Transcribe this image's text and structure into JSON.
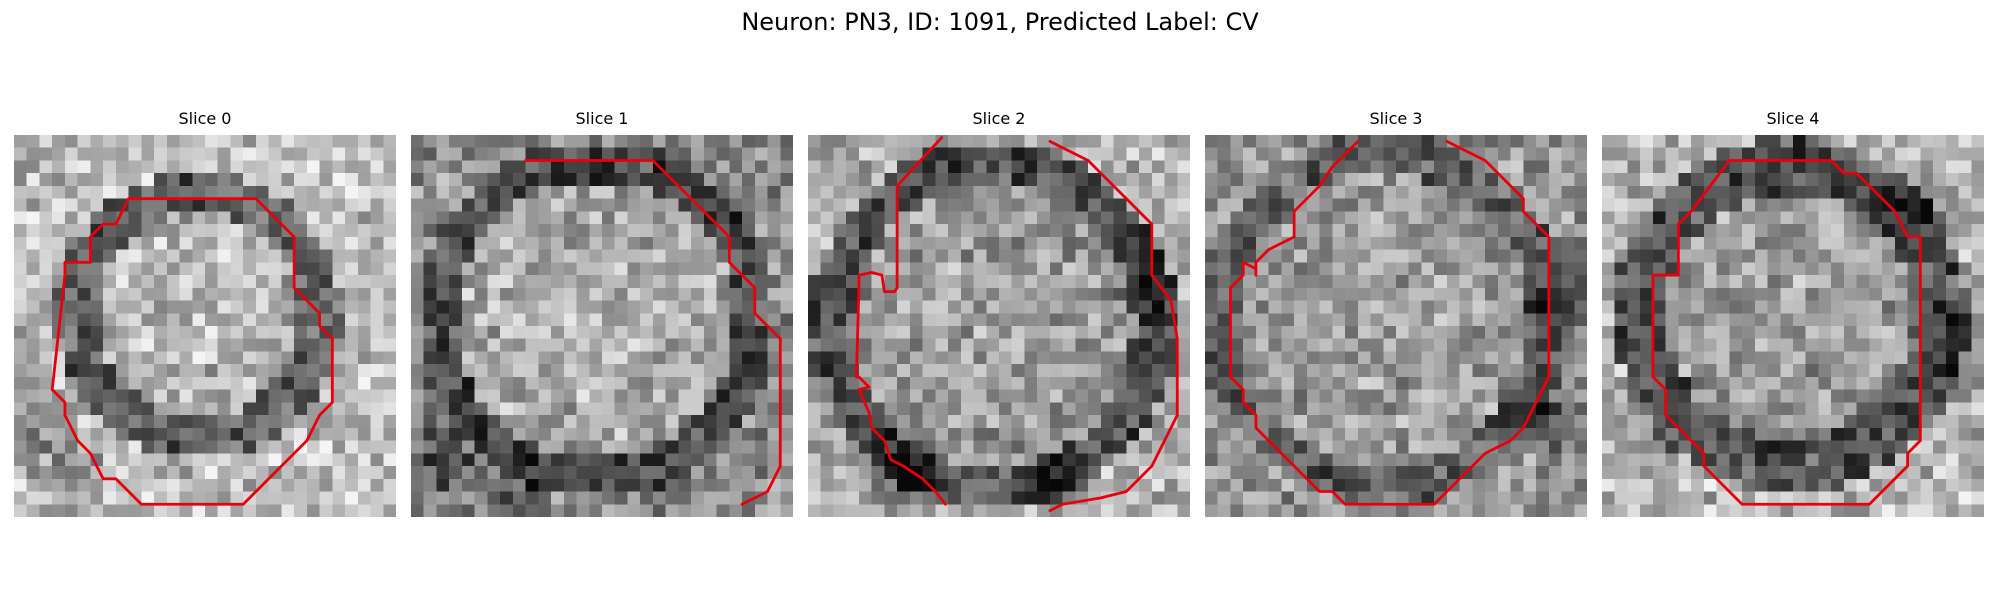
{
  "figure": {
    "title": "Neuron: PN3, ID: 1091, Predicted Label: CV"
  },
  "panels": [
    {
      "title": "Slice 0"
    },
    {
      "title": "Slice 1"
    },
    {
      "title": "Slice 2"
    },
    {
      "title": "Slice 3"
    },
    {
      "title": "Slice 4"
    }
  ],
  "colors": {
    "contour": "#e8000b",
    "image_dark": "#000000",
    "image_light": "#ffffff"
  }
}
